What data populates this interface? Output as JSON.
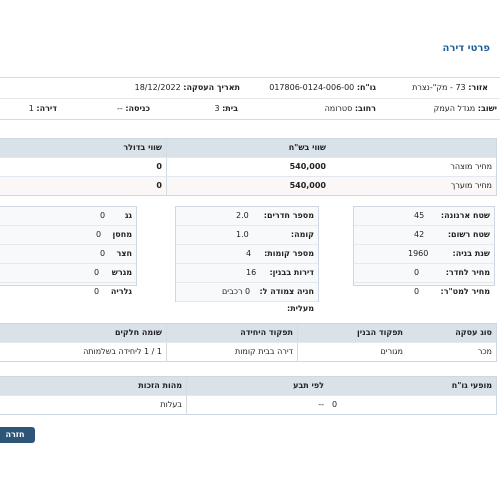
{
  "page_title": "פרטי דירה",
  "meta": {
    "row1": {
      "area_label": "אזור:",
      "area_value": "73 - מק\"-נצרת",
      "block_label": "גו\"ח:",
      "block_value": "017806-0124-006-00",
      "date_label": "תאריך העסקה:",
      "date_value": "18/12/2022"
    },
    "row2": {
      "settlement_label": "ישוב:",
      "settlement_value": "מגדל העמק",
      "street_label": "רחוב:",
      "street_value": "סטרומה",
      "house_label": "בית:",
      "house_value": "3",
      "entrance_label": "כניסה:",
      "entrance_value": "--",
      "apartment_label": "דירה:",
      "apartment_value": "1"
    }
  },
  "price_table": {
    "headers": [
      "",
      "שווי בש\"ח",
      "שווי בדולר"
    ],
    "rows": [
      {
        "label": "מחיר מוצהר",
        "nis": "540,000",
        "usd": "0"
      },
      {
        "label": "מחיר מוערך",
        "nis": "540,000",
        "usd": "0"
      }
    ]
  },
  "card_right": [
    {
      "k": "שטח ארנונה:",
      "v": "45"
    },
    {
      "k": "שטח רשום:",
      "v": "42"
    },
    {
      "k": "שנת בניה:",
      "v": "1960"
    },
    {
      "k": "מחיר לחדר:",
      "v": "0"
    },
    {
      "k": "מחיר למט\"ר:",
      "v": "0"
    }
  ],
  "card_middle": [
    {
      "k": "מספר חדרים:",
      "v": "2.0"
    },
    {
      "k": "קומה:",
      "v": "1.0"
    },
    {
      "k": "מספר קומות:",
      "v": "4"
    },
    {
      "k": "דירות בבנין:",
      "v": "16"
    },
    {
      "k": "חניה צמודה ל:",
      "v": "0 רכבים"
    },
    {
      "k": "מעלית:",
      "v": ""
    }
  ],
  "card_left": [
    {
      "k": "גג",
      "v": "0"
    },
    {
      "k": "מחסן",
      "v": "0"
    },
    {
      "k": "חצר",
      "v": "0"
    },
    {
      "k": "מגרש",
      "v": "0"
    },
    {
      "k": "גלריה",
      "v": "0"
    }
  ],
  "deal_table": {
    "headers": [
      "סוג עסקה",
      "תפקוד הבנין",
      "תפקוד היחידה",
      "שומה חלקים"
    ],
    "row": [
      "מכר",
      "מגורים",
      "דירה בבית קומות",
      "1 / 1 ליחידה בשלמותה"
    ]
  },
  "rights_table": {
    "headers": [
      "מופעי גו\"ח",
      "לפי תבע",
      "מהות הזכות"
    ],
    "row": [
      "0",
      "--",
      "בעלות"
    ]
  },
  "back_button": "חזרה"
}
